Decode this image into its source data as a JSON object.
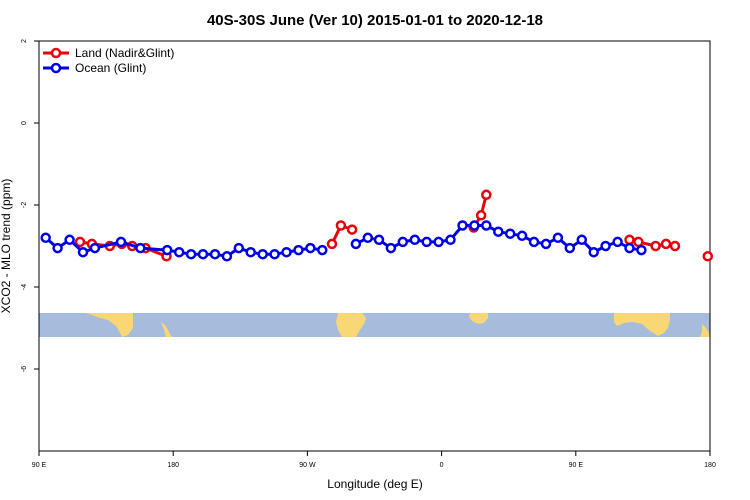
{
  "chart_data": {
    "type": "line",
    "title": "40S-30S June (Ver 10)   2015-01-01 to 2020-12-18",
    "xlabel": "Longitude (deg E)",
    "ylabel": "XCO2 - MLO trend (ppm)",
    "xlim": [
      90,
      450
    ],
    "ylim": [
      -8,
      2
    ],
    "x_ticks": [
      {
        "value": 90,
        "label": "90 E"
      },
      {
        "value": 180,
        "label": "180"
      },
      {
        "value": 270,
        "label": "90 W"
      },
      {
        "value": 360,
        "label": "0"
      },
      {
        "value": 450,
        "label": "90 E"
      },
      {
        "value": 540,
        "label": "180"
      }
    ],
    "y_ticks": [
      {
        "value": 2,
        "label": "2"
      },
      {
        "value": 0,
        "label": "0"
      },
      {
        "value": -2,
        "label": "-2"
      },
      {
        "value": -4,
        "label": "-4"
      },
      {
        "value": -6,
        "label": "-6"
      }
    ],
    "legend_position": "top-left",
    "grid": false,
    "series": [
      {
        "name": "Land (Nadir&Glint)",
        "color": "#e8000b",
        "segments": [
          [
            {
              "x": 117.5,
              "y": -2.9
            },
            {
              "x": 125.5,
              "y": -2.95
            },
            {
              "x": 137.5,
              "y": -3.0
            },
            {
              "x": 145.5,
              "y": -2.95
            },
            {
              "x": 152.5,
              "y": -3.0
            },
            {
              "x": 161.5,
              "y": -3.05
            },
            {
              "x": 175.5,
              "y": -3.25
            }
          ],
          [
            {
              "x": 286.5,
              "y": -2.95
            },
            {
              "x": 292.5,
              "y": -2.5
            },
            {
              "x": 300.0,
              "y": -2.6
            }
          ],
          [
            {
              "x": 381.5,
              "y": -2.55
            },
            {
              "x": 386.5,
              "y": -2.25
            },
            {
              "x": 390.0,
              "y": -1.75
            }
          ],
          [
            {
              "x": 486.0,
              "y": -2.85
            },
            {
              "x": 492.0,
              "y": -2.9
            },
            {
              "x": 503.5,
              "y": -3.0
            },
            {
              "x": 510.5,
              "y": -2.95
            },
            {
              "x": 516.5,
              "y": -3.0
            }
          ],
          [
            {
              "x": 538.5,
              "y": -3.25
            }
          ]
        ]
      },
      {
        "name": "Ocean (Glint)",
        "color": "#0000e6",
        "segments": [
          [
            {
              "x": 94.5,
              "y": -2.8
            },
            {
              "x": 102.5,
              "y": -3.05
            },
            {
              "x": 110.5,
              "y": -2.85
            },
            {
              "x": 119.5,
              "y": -3.15
            },
            {
              "x": 127.5,
              "y": -3.05
            },
            {
              "x": 145.0,
              "y": -2.9
            },
            {
              "x": 158.0,
              "y": -3.05
            },
            {
              "x": 176.0,
              "y": -3.1
            },
            {
              "x": 184.0,
              "y": -3.15
            },
            {
              "x": 192.0,
              "y": -3.2
            },
            {
              "x": 200.0,
              "y": -3.2
            },
            {
              "x": 208.0,
              "y": -3.2
            },
            {
              "x": 216.0,
              "y": -3.25
            },
            {
              "x": 224.0,
              "y": -3.05
            },
            {
              "x": 232.0,
              "y": -3.15
            },
            {
              "x": 240.0,
              "y": -3.2
            },
            {
              "x": 248.0,
              "y": -3.2
            },
            {
              "x": 256.0,
              "y": -3.15
            },
            {
              "x": 264.0,
              "y": -3.1
            },
            {
              "x": 272.0,
              "y": -3.05
            },
            {
              "x": 280.0,
              "y": -3.1
            }
          ],
          [
            {
              "x": 302.5,
              "y": -2.95
            },
            {
              "x": 310.5,
              "y": -2.8
            },
            {
              "x": 318.0,
              "y": -2.85
            },
            {
              "x": 326.0,
              "y": -3.05
            },
            {
              "x": 334.0,
              "y": -2.9
            },
            {
              "x": 342.0,
              "y": -2.85
            },
            {
              "x": 350.0,
              "y": -2.9
            },
            {
              "x": 358.0,
              "y": -2.9
            },
            {
              "x": 366.0,
              "y": -2.85
            },
            {
              "x": 374.0,
              "y": -2.5
            },
            {
              "x": 382.0,
              "y": -2.5
            },
            {
              "x": 390.0,
              "y": -2.5
            },
            {
              "x": 398.0,
              "y": -2.65
            },
            {
              "x": 406.0,
              "y": -2.7
            },
            {
              "x": 414.0,
              "y": -2.75
            },
            {
              "x": 422.0,
              "y": -2.9
            },
            {
              "x": 430.0,
              "y": -2.95
            },
            {
              "x": 438.0,
              "y": -2.8
            },
            {
              "x": 446.0,
              "y": -3.05
            },
            {
              "x": 454.0,
              "y": -2.85
            },
            {
              "x": 462.0,
              "y": -3.15
            },
            {
              "x": 470.0,
              "y": -3.0
            },
            {
              "x": 478.0,
              "y": -2.9
            },
            {
              "x": 486.0,
              "y": -3.05
            },
            {
              "x": 494.0,
              "y": -3.1
            }
          ]
        ]
      }
    ],
    "map_strip": {
      "lat_range": "40S-30S",
      "ocean_color": "#a5bcdc",
      "land_color": "#f8d774",
      "y_range": [
        -5.25,
        -4.65
      ]
    }
  }
}
